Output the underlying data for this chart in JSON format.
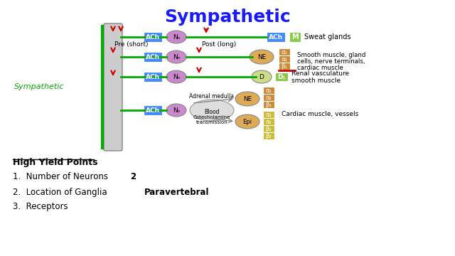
{
  "title": "Sympathetic",
  "title_fontsize": 18,
  "title_color": "#1a1aff",
  "bg_color": "#ffffff",
  "sympathetic_label": "Sympathetic",
  "sympathetic_label_color": "#00aa00",
  "pre_label": "Pre (short)",
  "post_label": "Post (long)",
  "high_yield_title": "High Yield Points",
  "items": [
    "1.  Number of Neurons",
    "2.  Location of Ganglia",
    "3.  Receptors"
  ],
  "bold_values": [
    "2",
    "Paravertebral",
    ""
  ],
  "spine_color": "#aaaaaa",
  "green_line_color": "#00aa00",
  "ach_color": "#4488ff",
  "nn_color": "#cc88cc",
  "ne_color": "#ddaa55",
  "epi_color": "#ddaa55",
  "d_color": "#ccdd88",
  "m_color": "#88cc44",
  "d1_color": "#88cc44",
  "alpha1_color": "#cc8833",
  "alpha2_color": "#cc8833",
  "beta1_color": "#cc8833",
  "beta1_yellow_color": "#ddcc44",
  "red_arrow_color": "#cc0000"
}
